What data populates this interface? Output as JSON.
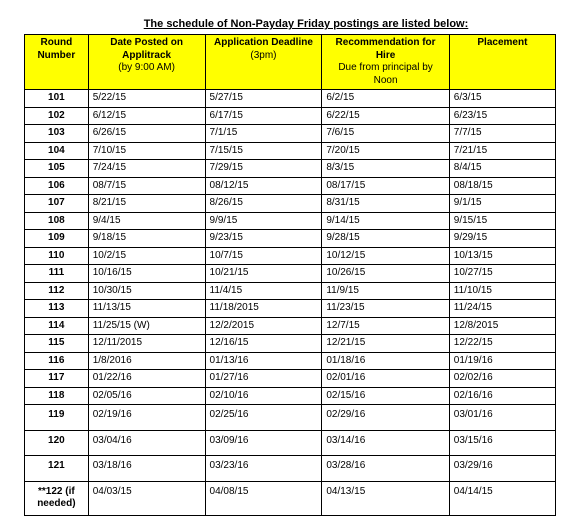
{
  "title": "The schedule of Non-Payday Friday postings are listed below:",
  "columns": [
    {
      "main": "Round Number",
      "sub": ""
    },
    {
      "main": "Date Posted on Applitrack",
      "sub": "(by 9:00 AM)"
    },
    {
      "main": "Application Deadline",
      "sub": "(3pm)"
    },
    {
      "main": "Recommendation for Hire",
      "sub": "Due from principal by Noon"
    },
    {
      "main": "Placement",
      "sub": ""
    }
  ],
  "rows": [
    {
      "rn": "101",
      "d1": "5/22/15",
      "d2": "5/27/15",
      "d3": "6/2/15",
      "d4": "6/3/15"
    },
    {
      "rn": "102",
      "d1": "6/12/15",
      "d2": "6/17/15",
      "d3": "6/22/15",
      "d4": "6/23/15"
    },
    {
      "rn": "103",
      "d1": "6/26/15",
      "d2": "7/1/15",
      "d3": "7/6/15",
      "d4": "7/7/15"
    },
    {
      "rn": "104",
      "d1": "7/10/15",
      "d2": "7/15/15",
      "d3": "7/20/15",
      "d4": "7/21/15"
    },
    {
      "rn": "105",
      "d1": "7/24/15",
      "d2": "7/29/15",
      "d3": "8/3/15",
      "d4": "8/4/15"
    },
    {
      "rn": "106",
      "d1": "08/7/15",
      "d2": "08/12/15",
      "d3": "08/17/15",
      "d4": "08/18/15"
    },
    {
      "rn": "107",
      "d1": "8/21/15",
      "d2": "8/26/15",
      "d3": "8/31/15",
      "d4": "9/1/15"
    },
    {
      "rn": "108",
      "d1": "9/4/15",
      "d2": "9/9/15",
      "d3": "9/14/15",
      "d4": "9/15/15"
    },
    {
      "rn": "109",
      "d1": "9/18/15",
      "d2": "9/23/15",
      "d3": "9/28/15",
      "d4": "9/29/15"
    },
    {
      "rn": "110",
      "d1": "10/2/15",
      "d2": "10/7/15",
      "d3": "10/12/15",
      "d4": "10/13/15"
    },
    {
      "rn": "111",
      "d1": "10/16/15",
      "d2": "10/21/15",
      "d3": "10/26/15",
      "d4": "10/27/15"
    },
    {
      "rn": "112",
      "d1": "10/30/15",
      "d2": "11/4/15",
      "d3": "11/9/15",
      "d4": "11/10/15"
    },
    {
      "rn": "113",
      "d1": "11/13/15",
      "d2": "11/18/2015",
      "d3": "11/23/15",
      "d4": "11/24/15"
    },
    {
      "rn": "114",
      "d1": "11/25/15 (W)",
      "d2": "12/2/2015",
      "d3": "12/7/15",
      "d4": "12/8/2015"
    },
    {
      "rn": "115",
      "d1": "12/11/2015",
      "d2": "12/16/15",
      "d3": "12/21/15",
      "d4": "12/22/15"
    },
    {
      "rn": "116",
      "d1": "1/8/2016",
      "d2": "01/13/16",
      "d3": "01/18/16",
      "d4": "01/19/16"
    },
    {
      "rn": "117",
      "d1": "01/22/16",
      "d2": "01/27/16",
      "d3": "02/01/16",
      "d4": "02/02/16"
    },
    {
      "rn": "118",
      "d1": "02/05/16",
      "d2": "02/10/16",
      "d3": "02/15/16",
      "d4": "02/16/16"
    },
    {
      "rn": "119",
      "d1": "02/19/16",
      "d2": "02/25/16",
      "d3": "02/29/16",
      "d4": "03/01/16",
      "tall": true
    },
    {
      "rn": "120",
      "d1": "03/04/16",
      "d2": "03/09/16",
      "d3": "03/14/16",
      "d4": "03/15/16",
      "tall": true
    },
    {
      "rn": "121",
      "d1": "03/18/16",
      "d2": "03/23/16",
      "d3": "03/28/16",
      "d4": "03/29/16",
      "tall": true
    },
    {
      "rn": "**122 (if needed)",
      "d1": "04/03/15",
      "d2": "04/08/15",
      "d3": "04/13/15",
      "d4": "04/14/15",
      "tall2": true
    }
  ],
  "colors": {
    "header_bg": "#ffff00",
    "border": "#000000",
    "page_bg": "#ffffff"
  }
}
